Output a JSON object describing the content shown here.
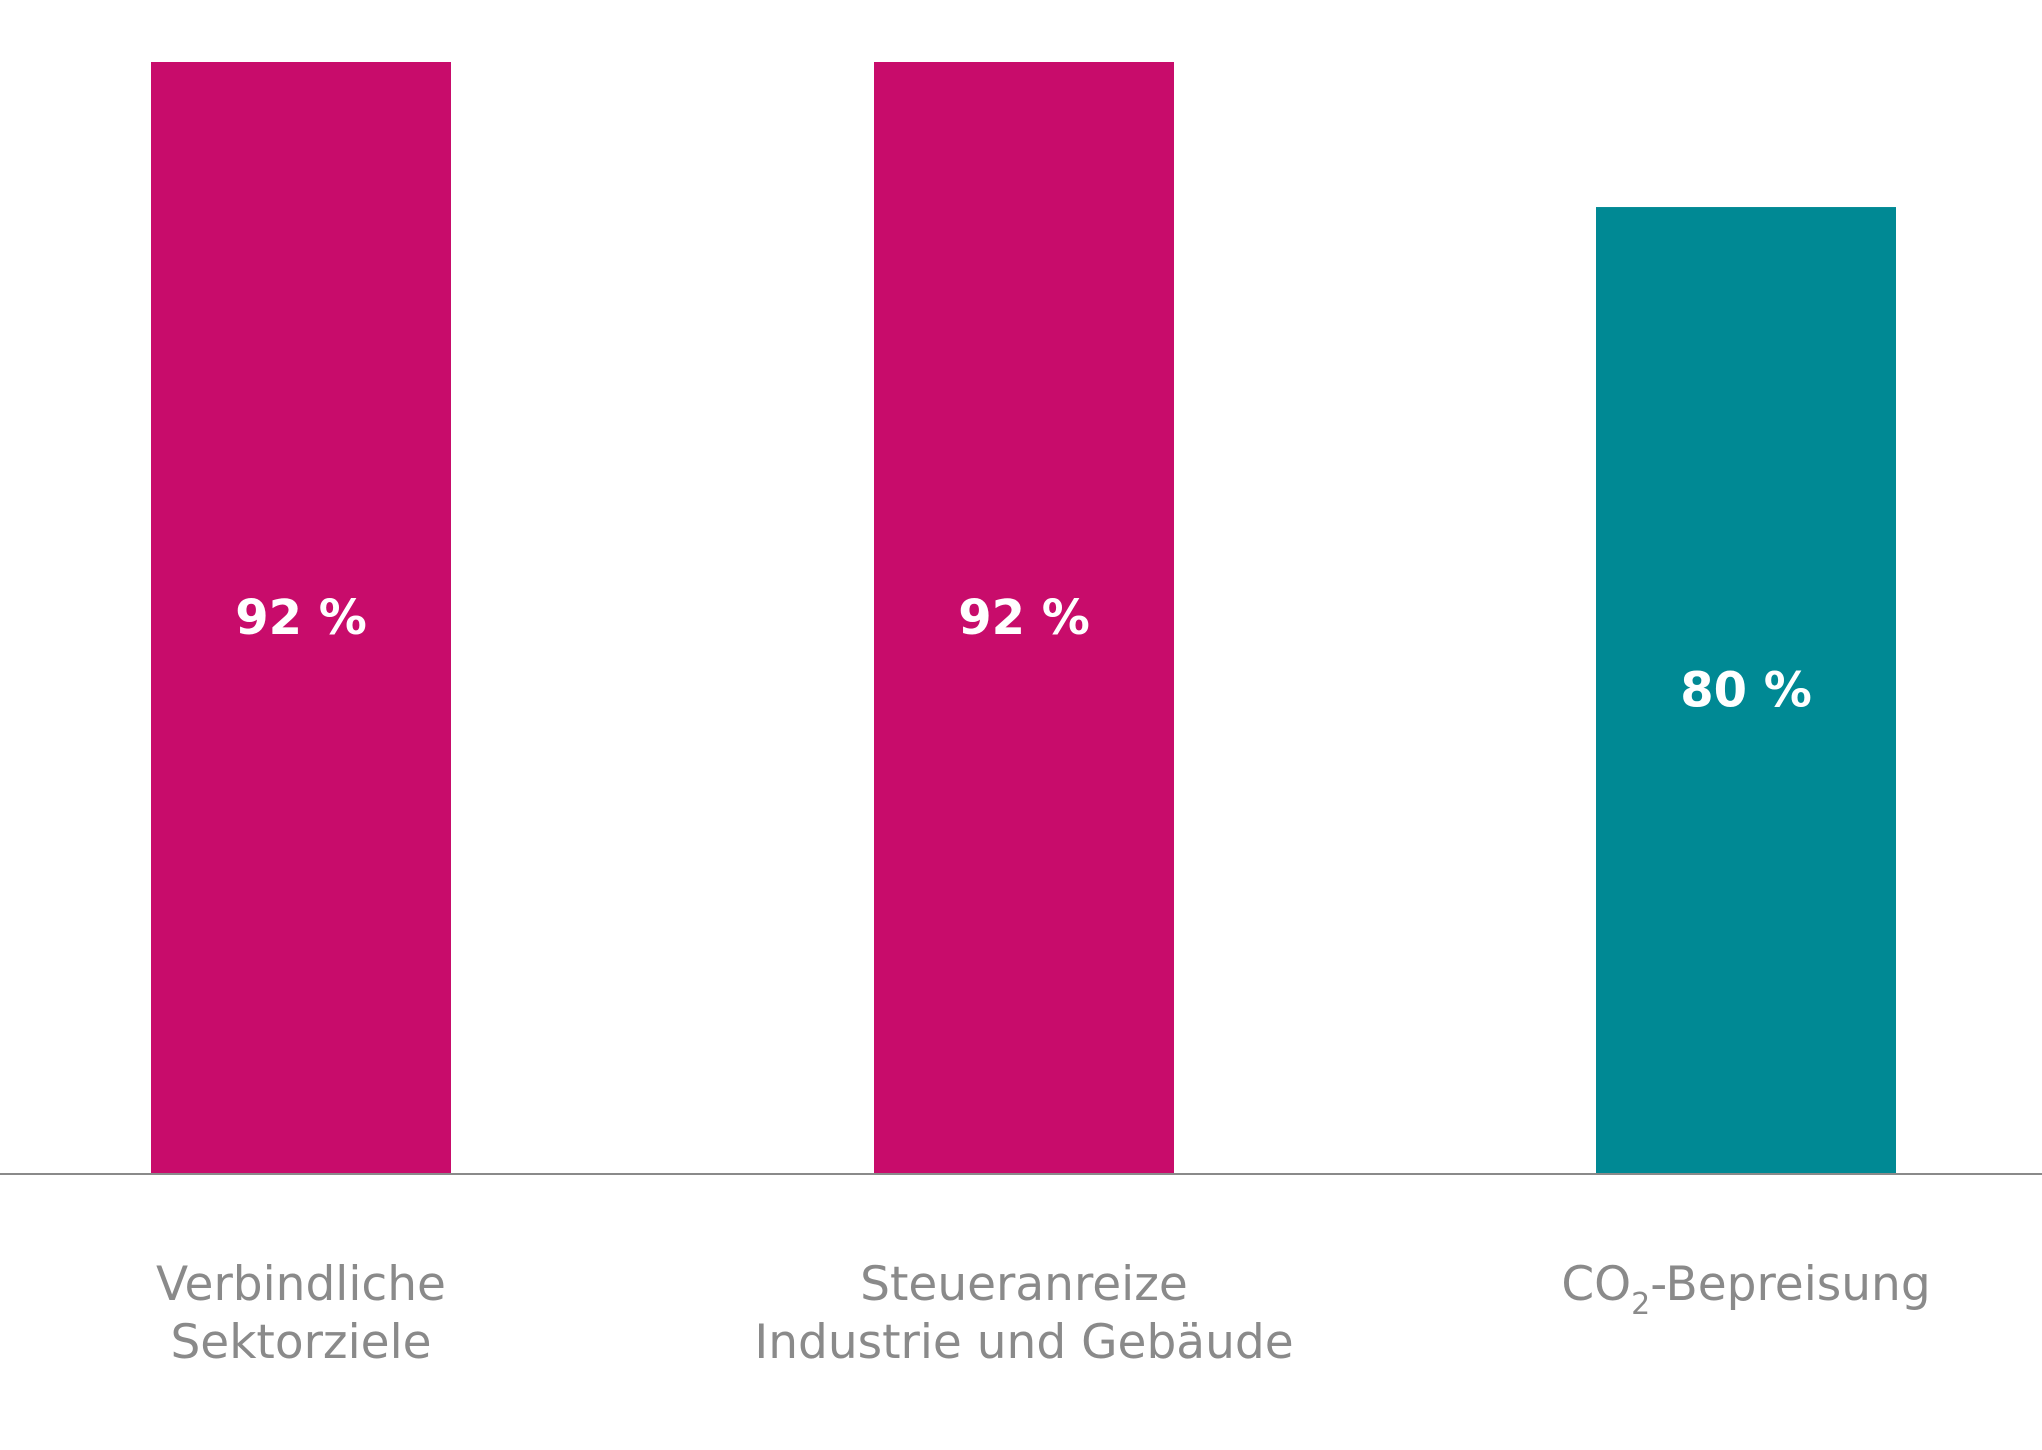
{
  "chart_data": {
    "type": "bar",
    "categories": [
      [
        "Verbindliche",
        "Sektorziele"
      ],
      [
        "Steueranreize",
        "Industrie und Gebäude"
      ],
      [
        "CO2-Bepreisung"
      ]
    ],
    "category_rich": [
      null,
      null,
      {
        "before": "CO",
        "sub": "2",
        "after": "-Bepreisung"
      }
    ],
    "values": [
      92,
      92,
      80
    ],
    "value_labels": [
      "92 %",
      "92 %",
      "80 %"
    ],
    "bar_colors": [
      "#c80c6b",
      "#c80c6b",
      "#008994"
    ],
    "axis_color": "#8a8a8a",
    "text_color": "#8a8a8a",
    "ylim": [
      0,
      92
    ],
    "grid": false,
    "title": "",
    "xlabel": "",
    "ylabel": ""
  }
}
